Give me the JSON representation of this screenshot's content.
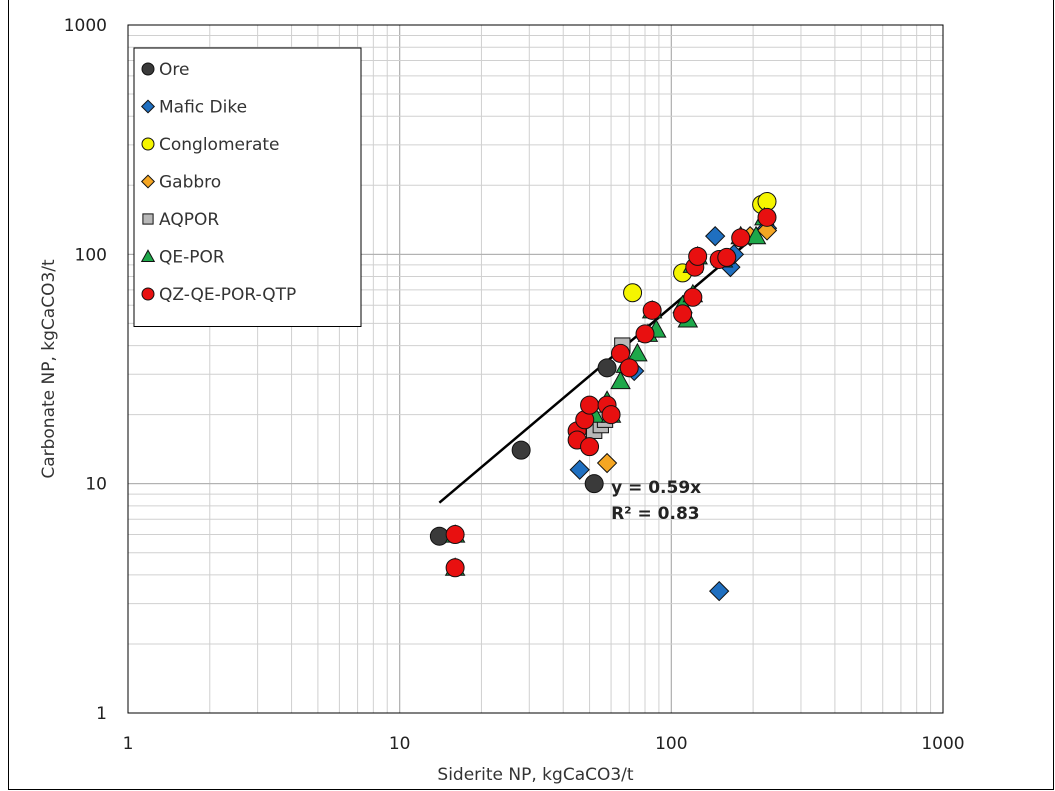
{
  "chart_data": {
    "type": "scatter",
    "xlabel": "Siderite NP, kgCaCO3/t",
    "ylabel": "Carbonate NP, kgCaCO3/t",
    "xscale": "log",
    "yscale": "log",
    "xlim": [
      1,
      1000
    ],
    "ylim": [
      1,
      1000
    ],
    "x_ticks": [
      "1",
      "10",
      "100",
      "1000"
    ],
    "y_ticks": [
      "1",
      "10",
      "100",
      "1000"
    ],
    "grid": true,
    "legend_position": "top-left",
    "trendline": {
      "slope": 0.59,
      "x_range": [
        14,
        230
      ],
      "equation": "y = 0.59x",
      "r2": "R² = 0.83"
    },
    "series": [
      {
        "name": "Ore",
        "marker": "circle",
        "color": "#3a3a3a",
        "points": [
          [
            14,
            5.9
          ],
          [
            28,
            14
          ],
          [
            52,
            10
          ],
          [
            58,
            32
          ]
        ]
      },
      {
        "name": "Mafic Dike",
        "marker": "diamond",
        "color": "#1f6fc0",
        "points": [
          [
            46,
            11.5
          ],
          [
            73,
            31
          ],
          [
            145,
            120
          ],
          [
            150,
            3.4
          ],
          [
            165,
            88
          ],
          [
            170,
            100
          ],
          [
            225,
            130
          ]
        ]
      },
      {
        "name": "Conglomerate",
        "marker": "circle",
        "color": "#f5f500",
        "points": [
          [
            72,
            68
          ],
          [
            110,
            83
          ],
          [
            215,
            165
          ],
          [
            225,
            170
          ]
        ]
      },
      {
        "name": "Gabbro",
        "marker": "diamond",
        "color": "#f5a623",
        "points": [
          [
            58,
            12.3
          ],
          [
            195,
            120
          ],
          [
            225,
            127
          ]
        ]
      },
      {
        "name": "AQPOR",
        "marker": "square",
        "color": "#b8b8b8",
        "points": [
          [
            52,
            17
          ],
          [
            55,
            18
          ],
          [
            57,
            19
          ],
          [
            66,
            40
          ]
        ]
      },
      {
        "name": "QE-POR",
        "marker": "triangle",
        "color": "#1ea84a",
        "points": [
          [
            16,
            6
          ],
          [
            16,
            4.3
          ],
          [
            52,
            20
          ],
          [
            58,
            23
          ],
          [
            60,
            20
          ],
          [
            65,
            28
          ],
          [
            68,
            33
          ],
          [
            75,
            37
          ],
          [
            82,
            45
          ],
          [
            85,
            57
          ],
          [
            88,
            47
          ],
          [
            110,
            60
          ],
          [
            115,
            52
          ],
          [
            120,
            67
          ],
          [
            120,
            90
          ],
          [
            125,
            98
          ],
          [
            155,
            95
          ],
          [
            180,
            120
          ],
          [
            205,
            120
          ],
          [
            220,
            145
          ]
        ]
      },
      {
        "name": "QZ-QE-POR-QTP",
        "marker": "circle",
        "color": "#e81010",
        "points": [
          [
            16,
            6
          ],
          [
            16,
            4.3
          ],
          [
            45,
            17
          ],
          [
            45,
            15.5
          ],
          [
            48,
            19
          ],
          [
            50,
            22
          ],
          [
            50,
            14.5
          ],
          [
            58,
            22
          ],
          [
            60,
            20
          ],
          [
            65,
            37
          ],
          [
            70,
            32
          ],
          [
            80,
            45
          ],
          [
            85,
            57
          ],
          [
            110,
            55
          ],
          [
            120,
            65
          ],
          [
            122,
            88
          ],
          [
            125,
            98
          ],
          [
            150,
            95
          ],
          [
            160,
            97
          ],
          [
            180,
            118
          ],
          [
            225,
            145
          ]
        ]
      }
    ]
  }
}
